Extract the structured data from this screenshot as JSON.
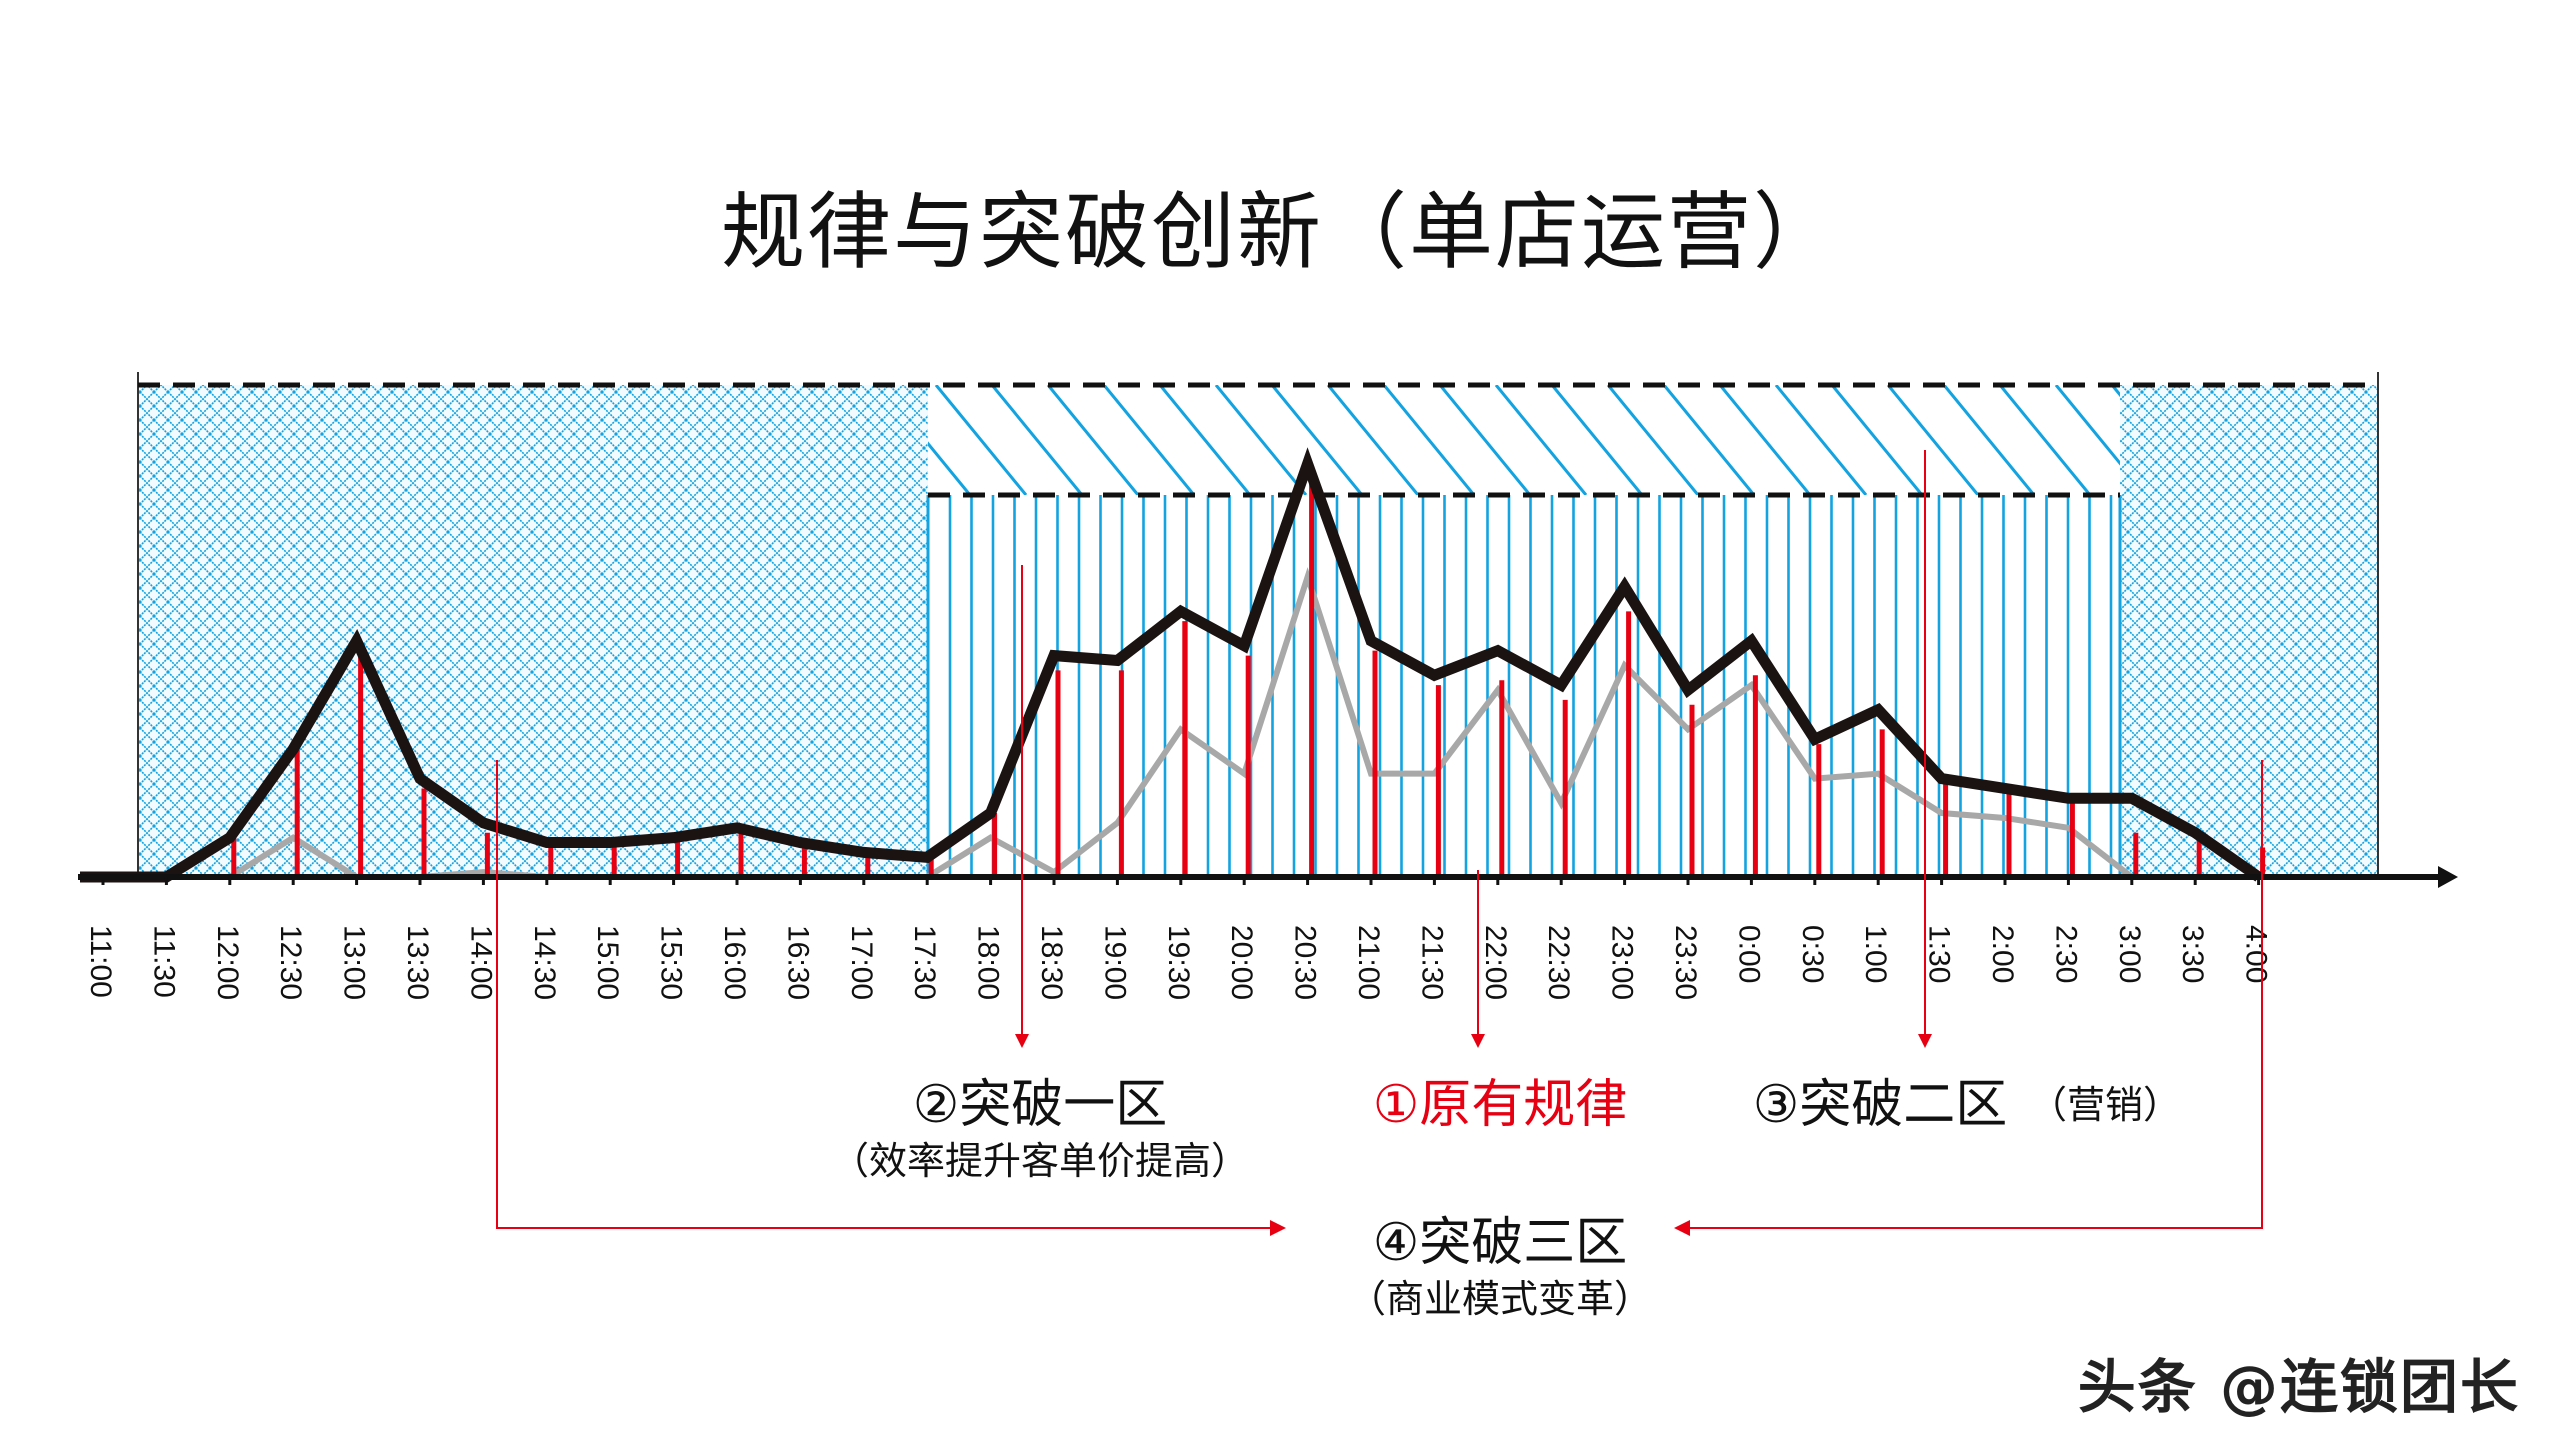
{
  "title": "规律与突破创新（单店运营）",
  "watermark": "头条 @连锁团长",
  "colors": {
    "main_line": "#1a1311",
    "baseline_line": "#a8a8a8",
    "stem": "#e60012",
    "hatch": "#12a3e0",
    "annotation": "#e60012",
    "axis": "#111111"
  },
  "annotations": {
    "zone1": {
      "label": "①原有规律"
    },
    "zone2": {
      "label": "②突破一区",
      "sub": "（效率提升客单价提高）"
    },
    "zone3": {
      "label": "③突破二区",
      "sub": "（营销）"
    },
    "zone4": {
      "label": "④突破三区",
      "sub": "（商业模式变革）"
    }
  },
  "chart_data": {
    "type": "line",
    "title": "规律与突破创新（单店运营）",
    "xlabel": "",
    "ylabel": "",
    "categories": [
      "11:00",
      "11:30",
      "12:00",
      "12:30",
      "13:00",
      "13:30",
      "14:00",
      "14:30",
      "15:00",
      "15:30",
      "16:00",
      "16:30",
      "17:00",
      "17:30",
      "18:00",
      "18:30",
      "19:00",
      "19:30",
      "20:00",
      "20:30",
      "21:00",
      "21:30",
      "22:00",
      "22:30",
      "23:00",
      "23:30",
      "0:00",
      "0:30",
      "1:00",
      "1:30",
      "2:00",
      "2:30",
      "3:00",
      "3:30",
      "4:00"
    ],
    "series": [
      {
        "name": "current_traffic",
        "style": "thick-black-line",
        "values": [
          0,
          0,
          8,
          26,
          48,
          20,
          11,
          7,
          7,
          8,
          10,
          7,
          5,
          4,
          13,
          45,
          44,
          54,
          47,
          84,
          48,
          41,
          46,
          39,
          59,
          38,
          48,
          28,
          34,
          20,
          18,
          16,
          16,
          9,
          0
        ]
      },
      {
        "name": "original_pattern",
        "style": "gray-line",
        "values": [
          0,
          0,
          0,
          8,
          0,
          0,
          1,
          0,
          0,
          0,
          0,
          0,
          0,
          0,
          8,
          1,
          11,
          30,
          21,
          61,
          21,
          21,
          38,
          15,
          43,
          30,
          39,
          20,
          21,
          13,
          12,
          10,
          0,
          0,
          0
        ]
      },
      {
        "name": "stems",
        "style": "red-stems",
        "values": [
          0,
          0,
          9,
          28,
          46,
          18,
          9,
          6,
          7,
          8,
          9,
          7,
          5,
          5,
          13,
          42,
          42,
          52,
          45,
          81,
          46,
          39,
          40,
          36,
          54,
          35,
          41,
          27,
          30,
          19,
          17,
          15,
          9,
          9,
          6
        ]
      }
    ],
    "zones": [
      {
        "name": "crosshatch-left",
        "from": "11:00",
        "to": "17:30",
        "pattern": "crosshatch"
      },
      {
        "name": "upper-diagonal",
        "from": "17:30",
        "to": "3:00",
        "pattern": "diagonal",
        "band": "upper"
      },
      {
        "name": "lower-vertical",
        "from": "17:30",
        "to": "3:00",
        "pattern": "vertical",
        "band": "lower"
      },
      {
        "name": "crosshatch-right",
        "from": "3:00",
        "to": "4:30",
        "pattern": "crosshatch"
      }
    ],
    "reference_lines": [
      {
        "name": "upper-dashed",
        "y": 100
      },
      {
        "name": "mid-dashed",
        "y": 80
      }
    ],
    "ylim": [
      0,
      100
    ],
    "grid": false,
    "legend": null
  }
}
